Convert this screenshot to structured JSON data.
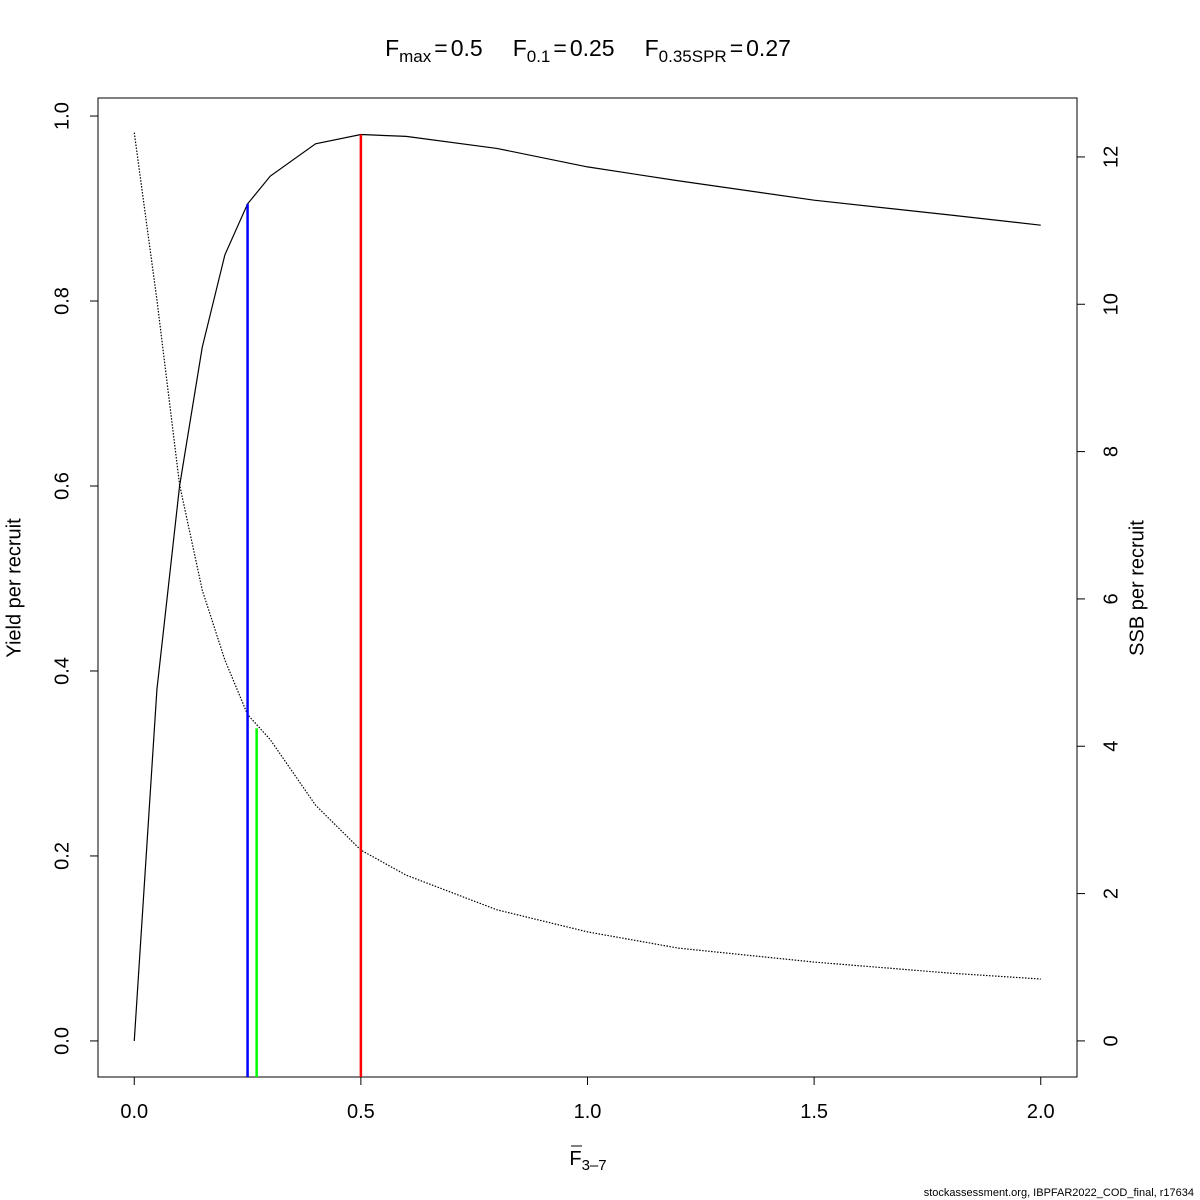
{
  "chart_data": {
    "type": "line",
    "title_parts": [
      {
        "symbol": "F",
        "subscript": "max",
        "relation": "=",
        "value": 0.5,
        "color": "#ff0000",
        "top": 0.98
      },
      {
        "symbol": "F",
        "subscript": "0.1",
        "relation": "=",
        "value": 0.25,
        "color": "#0000ff",
        "top": 0.905
      },
      {
        "symbol": "F",
        "subscript": "0.35SPR",
        "relation": "=",
        "value": 0.27,
        "color": "#00ff00",
        "top": 0.338
      }
    ],
    "xlabel": {
      "symbol": "F",
      "subscript": "3–7"
    },
    "ylabel": "Yield per recruit",
    "y2label": "SSB per recruit",
    "footer": "stockassessment.org, IBPFAR2022_COD_final, r17634",
    "x": [
      0,
      0.05,
      0.1,
      0.15,
      0.2,
      0.25,
      0.3,
      0.4,
      0.5,
      0.6,
      0.8,
      1.0,
      1.2,
      1.5,
      1.8,
      2.0
    ],
    "series": [
      {
        "color": "#000000",
        "style": "solid",
        "values": [
          0,
          0.38,
          0.6,
          0.75,
          0.85,
          0.905,
          0.935,
          0.97,
          0.98,
          0.978,
          0.965,
          0.945,
          0.93,
          0.909,
          0.893,
          0.882
        ]
      },
      {
        "color": "#000000",
        "style": "dotted",
        "axis": "y2",
        "values": [
          12.33,
          10.06,
          7.55,
          6.12,
          5.17,
          4.43,
          4.09,
          3.2,
          2.59,
          2.25,
          1.78,
          1.48,
          1.26,
          1.07,
          0.92,
          0.84
        ]
      }
    ],
    "xlim": [
      -0.08,
      2.08
    ],
    "xticks": [
      {
        "value": 0,
        "label": "0.0"
      },
      0.5,
      {
        "value": 1,
        "label": "1.0"
      },
      1.5,
      {
        "value": 2,
        "label": "2.0"
      }
    ],
    "ylim": [
      -0.039,
      1.0195
    ],
    "yticks": [
      {
        "value": 0,
        "label": "0.0"
      },
      0.2,
      0.4,
      0.6,
      0.8,
      {
        "value": 1,
        "label": "1.0"
      }
    ],
    "y2lim": [
      -0.49,
      12.8
    ],
    "y2ticks": [
      0,
      2,
      4,
      6,
      8,
      10,
      12
    ]
  }
}
